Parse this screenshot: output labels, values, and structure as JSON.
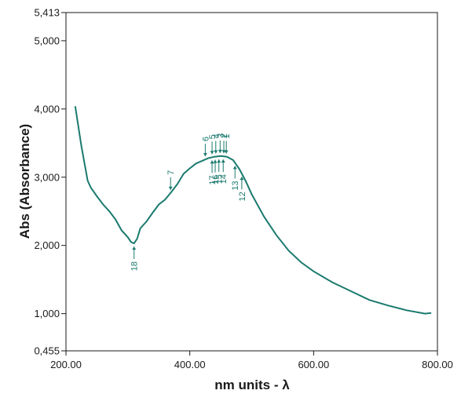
{
  "chart_data": {
    "type": "line",
    "xlabel": "nm units - λ",
    "ylabel": "Abs  (Absorbance)",
    "xlim": [
      200,
      800
    ],
    "ylim": [
      0.455,
      5.413
    ],
    "x_ticks": [
      200,
      400,
      600,
      800
    ],
    "x_tick_labels": [
      "200.00",
      "400.00",
      "600.00",
      "800.00"
    ],
    "y_ticks": [
      0.455,
      1.0,
      2.0,
      3.0,
      4.0,
      5.0,
      5.413
    ],
    "y_tick_labels": [
      "0,455",
      "1,000",
      "2,000",
      "3,000",
      "4,000",
      "5,000",
      "5,413"
    ],
    "grid": false,
    "line_color": "#1a7a6e",
    "series": [
      {
        "x": [
          215,
          225,
          235,
          240,
          250,
          260,
          270,
          280,
          290,
          300,
          305,
          310,
          315,
          320,
          330,
          340,
          350,
          360,
          370,
          380,
          390,
          400,
          410,
          420,
          430,
          440,
          450,
          460,
          470,
          480,
          490,
          500,
          520,
          540,
          560,
          580,
          600,
          630,
          660,
          690,
          720,
          750,
          780,
          790
        ],
        "y": [
          4.04,
          3.45,
          2.95,
          2.85,
          2.72,
          2.6,
          2.5,
          2.38,
          2.22,
          2.12,
          2.05,
          2.03,
          2.1,
          2.25,
          2.35,
          2.48,
          2.6,
          2.67,
          2.78,
          2.9,
          3.05,
          3.13,
          3.2,
          3.24,
          3.28,
          3.3,
          3.31,
          3.3,
          3.25,
          3.12,
          2.95,
          2.75,
          2.42,
          2.15,
          1.92,
          1.75,
          1.62,
          1.46,
          1.33,
          1.2,
          1.12,
          1.05,
          1.0,
          1.01
        ]
      }
    ],
    "annotations": [
      {
        "label": "1",
        "x": 459,
        "direction": "down"
      },
      {
        "label": "2",
        "x": 455,
        "direction": "down"
      },
      {
        "label": "3",
        "x": 449,
        "direction": "down"
      },
      {
        "label": "4",
        "x": 442,
        "direction": "down"
      },
      {
        "label": "5",
        "x": 436,
        "direction": "down"
      },
      {
        "label": "6",
        "x": 425,
        "direction": "down"
      },
      {
        "label": "7",
        "x": 369,
        "direction": "down"
      },
      {
        "label": "12",
        "x": 484,
        "direction": "up"
      },
      {
        "label": "13",
        "x": 473,
        "direction": "up"
      },
      {
        "label": "14",
        "x": 454,
        "direction": "up"
      },
      {
        "label": "15",
        "x": 447,
        "direction": "up"
      },
      {
        "label": "16",
        "x": 441,
        "direction": "up"
      },
      {
        "label": "17",
        "x": 436,
        "direction": "up"
      },
      {
        "label": "18",
        "x": 310,
        "direction": "up"
      }
    ]
  }
}
